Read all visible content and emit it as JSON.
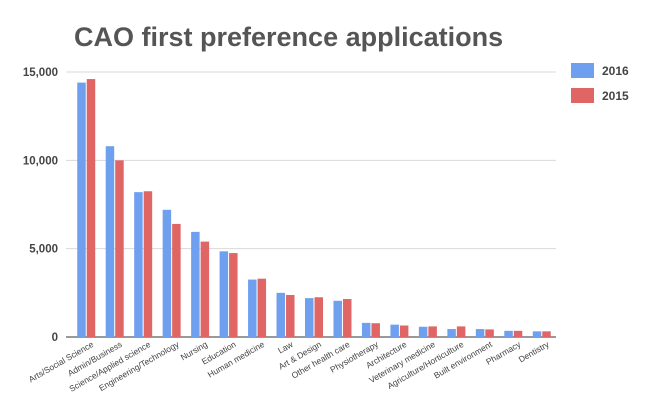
{
  "chart_data": {
    "type": "bar",
    "title": "CAO first preference applications",
    "xlabel": "",
    "ylabel": "",
    "ylim": [
      0,
      15000
    ],
    "yticks": [
      0,
      5000,
      10000,
      15000
    ],
    "ytick_labels": [
      "0",
      "5,000",
      "10,000",
      "15,000"
    ],
    "grid": true,
    "legend_position": "right",
    "categories": [
      "Arts/Social Science",
      "Admin/Business",
      "Science/Applied science",
      "Engineering/Technology",
      "Nursing",
      "Education",
      "Human medicine",
      "Law",
      "Art & Design",
      "Other health care",
      "Physiotherapy",
      "Architecture",
      "Veterinary medicine",
      "Agriculture/Horticulture",
      "Built environment",
      "Pharmacy",
      "Dentistry"
    ],
    "series": [
      {
        "name": "2016",
        "color": "#6fa0f0",
        "values": [
          14400,
          10800,
          8200,
          7200,
          5950,
          4850,
          3250,
          2500,
          2200,
          2050,
          800,
          700,
          580,
          450,
          450,
          350,
          320
        ]
      },
      {
        "name": "2015",
        "color": "#e06666",
        "values": [
          14600,
          10000,
          8250,
          6400,
          5400,
          4750,
          3300,
          2380,
          2250,
          2150,
          780,
          650,
          600,
          600,
          430,
          350,
          320
        ]
      }
    ]
  }
}
